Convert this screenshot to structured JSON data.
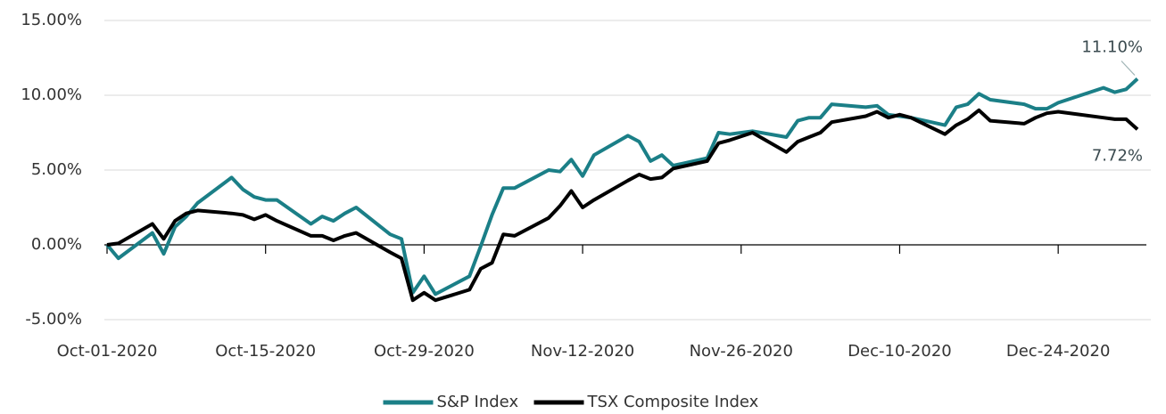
{
  "chart_data": {
    "type": "line",
    "x": [
      "Oct-01-2020",
      "Oct-02-2020",
      "Oct-05-2020",
      "Oct-06-2020",
      "Oct-07-2020",
      "Oct-08-2020",
      "Oct-09-2020",
      "Oct-12-2020",
      "Oct-13-2020",
      "Oct-14-2020",
      "Oct-15-2020",
      "Oct-16-2020",
      "Oct-19-2020",
      "Oct-20-2020",
      "Oct-21-2020",
      "Oct-22-2020",
      "Oct-23-2020",
      "Oct-26-2020",
      "Oct-27-2020",
      "Oct-28-2020",
      "Oct-29-2020",
      "Oct-30-2020",
      "Nov-02-2020",
      "Nov-03-2020",
      "Nov-04-2020",
      "Nov-05-2020",
      "Nov-06-2020",
      "Nov-09-2020",
      "Nov-10-2020",
      "Nov-11-2020",
      "Nov-12-2020",
      "Nov-13-2020",
      "Nov-16-2020",
      "Nov-17-2020",
      "Nov-18-2020",
      "Nov-19-2020",
      "Nov-20-2020",
      "Nov-23-2020",
      "Nov-24-2020",
      "Nov-25-2020",
      "Nov-27-2020",
      "Nov-30-2020",
      "Dec-01-2020",
      "Dec-02-2020",
      "Dec-03-2020",
      "Dec-04-2020",
      "Dec-07-2020",
      "Dec-08-2020",
      "Dec-09-2020",
      "Dec-10-2020",
      "Dec-11-2020",
      "Dec-14-2020",
      "Dec-15-2020",
      "Dec-16-2020",
      "Dec-17-2020",
      "Dec-18-2020",
      "Dec-21-2020",
      "Dec-22-2020",
      "Dec-23-2020",
      "Dec-24-2020",
      "Dec-28-2020",
      "Dec-29-2020",
      "Dec-30-2020",
      "Dec-31-2020"
    ],
    "series": [
      {
        "name": "S&P Index",
        "color": "#1b7f87",
        "values": [
          0,
          -0.9,
          0.8,
          -0.6,
          1.2,
          1.9,
          2.8,
          4.5,
          3.7,
          3.2,
          3.0,
          3.0,
          1.4,
          1.9,
          1.6,
          2.1,
          2.5,
          0.7,
          0.4,
          -3.2,
          -2.1,
          -3.3,
          -2.1,
          -0.1,
          2.0,
          3.8,
          3.8,
          5.0,
          4.9,
          5.7,
          4.6,
          6.0,
          7.3,
          6.9,
          5.6,
          6.0,
          5.3,
          5.8,
          7.5,
          7.4,
          7.6,
          7.2,
          8.3,
          8.5,
          8.5,
          9.4,
          9.2,
          9.3,
          8.7,
          8.6,
          8.5,
          8.0,
          9.2,
          9.4,
          10.1,
          9.7,
          9.4,
          9.1,
          9.1,
          9.5,
          10.5,
          10.2,
          10.4,
          11.1
        ],
        "value_labels": [
          null,
          null,
          null,
          null,
          null,
          null,
          null,
          null,
          null,
          null,
          null,
          null,
          null,
          null,
          null,
          null,
          null,
          null,
          null,
          null,
          null,
          null,
          null,
          null,
          null,
          null,
          null,
          null,
          null,
          null,
          null,
          null,
          null,
          null,
          null,
          null,
          null,
          null,
          null,
          null,
          null,
          null,
          null,
          null,
          null,
          null,
          null,
          null,
          null,
          null,
          null,
          null,
          null,
          null,
          null,
          null,
          null,
          null,
          null,
          null,
          null,
          null,
          null,
          "11.10%"
        ]
      },
      {
        "name": "TSX Composite Index",
        "color": "#000000",
        "values": [
          0,
          0.1,
          1.4,
          0.4,
          1.6,
          2.1,
          2.3,
          2.1,
          2.0,
          1.7,
          2.0,
          1.6,
          0.6,
          0.6,
          0.3,
          0.6,
          0.8,
          -0.5,
          -0.9,
          -3.7,
          -3.2,
          -3.7,
          -3.0,
          -1.6,
          -1.2,
          0.7,
          0.6,
          1.8,
          2.6,
          3.6,
          2.5,
          3.0,
          4.3,
          4.7,
          4.4,
          4.5,
          5.1,
          5.6,
          6.8,
          7.0,
          7.5,
          6.2,
          6.9,
          7.2,
          7.5,
          8.2,
          8.6,
          8.9,
          8.5,
          8.7,
          8.5,
          7.4,
          8.0,
          8.4,
          9.0,
          8.3,
          8.1,
          8.5,
          8.8,
          8.9,
          8.5,
          8.4,
          8.4,
          7.72
        ],
        "value_labels": [
          null,
          null,
          null,
          null,
          null,
          null,
          null,
          null,
          null,
          null,
          null,
          null,
          null,
          null,
          null,
          null,
          null,
          null,
          null,
          null,
          null,
          null,
          null,
          null,
          null,
          null,
          null,
          null,
          null,
          null,
          null,
          null,
          null,
          null,
          null,
          null,
          null,
          null,
          null,
          null,
          null,
          null,
          null,
          null,
          null,
          null,
          null,
          null,
          null,
          null,
          null,
          null,
          null,
          null,
          null,
          null,
          null,
          null,
          null,
          null,
          null,
          null,
          null,
          "7.72%"
        ]
      }
    ],
    "xlim": [
      "Oct-01-2020",
      "Dec-31-2020"
    ],
    "xticks": [
      "Oct-01-2020",
      "Oct-15-2020",
      "Oct-29-2020",
      "Nov-12-2020",
      "Nov-26-2020",
      "Dec-10-2020",
      "Dec-24-2020"
    ],
    "ylim": [
      -5,
      15
    ],
    "yticks": [
      {
        "value": -5,
        "label": "-5.00%"
      },
      {
        "value": 0,
        "label": "0.00%"
      },
      {
        "value": 5,
        "label": "5.00%"
      },
      {
        "value": 10,
        "label": "10.00%"
      },
      {
        "value": 15,
        "label": "15.00%"
      }
    ],
    "grid": true,
    "legend": "bottom"
  }
}
